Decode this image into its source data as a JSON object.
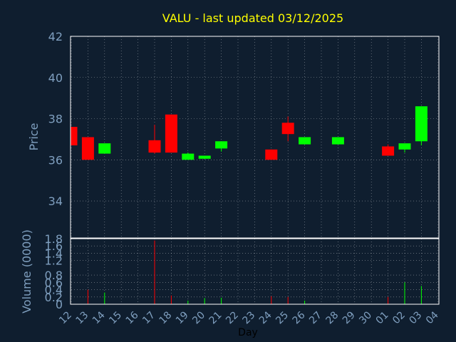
{
  "chart_data": [
    {
      "type": "candlestick",
      "title": "VALU - last updated 03/12/2025",
      "ylabel": "Price",
      "ylim": [
        32.2,
        42
      ],
      "yticks": [
        34,
        36,
        38,
        40,
        42
      ],
      "grid": true,
      "colors": {
        "up": "#00ff00",
        "down": "#ff0000",
        "background": "#0f1e2f",
        "text": "#7f9fbf",
        "title": "#ffff00",
        "grid": "#ffffff"
      },
      "x": [
        "12",
        "13",
        "14",
        "15",
        "16",
        "17",
        "18",
        "19",
        "20",
        "21",
        "22",
        "23",
        "24",
        "25",
        "26",
        "27",
        "28",
        "29",
        "30",
        "01",
        "02",
        "03",
        "04"
      ],
      "candles": [
        {
          "day": "12",
          "open": 37.6,
          "close": 36.7,
          "high": 37.6,
          "low": 36.7
        },
        {
          "day": "13",
          "open": 37.1,
          "close": 36.0,
          "high": 37.1,
          "low": 36.0
        },
        {
          "day": "14",
          "open": 36.3,
          "close": 36.8,
          "high": 36.8,
          "low": 36.3
        },
        {
          "day": "17",
          "open": 36.95,
          "close": 36.35,
          "high": 37.7,
          "low": 36.3
        },
        {
          "day": "18",
          "open": 38.2,
          "close": 36.35,
          "high": 38.2,
          "low": 36.35
        },
        {
          "day": "19",
          "open": 36.0,
          "close": 36.3,
          "high": 36.35,
          "low": 36.0
        },
        {
          "day": "20",
          "open": 36.05,
          "close": 36.2,
          "high": 36.2,
          "low": 36.05
        },
        {
          "day": "21",
          "open": 36.55,
          "close": 36.9,
          "high": 36.9,
          "low": 36.4
        },
        {
          "day": "24",
          "open": 36.5,
          "close": 36.0,
          "high": 36.5,
          "low": 36.0
        },
        {
          "day": "25",
          "open": 37.8,
          "close": 37.25,
          "high": 38.1,
          "low": 36.9
        },
        {
          "day": "26",
          "open": 36.75,
          "close": 37.1,
          "high": 37.1,
          "low": 36.75
        },
        {
          "day": "28",
          "open": 36.75,
          "close": 37.1,
          "high": 37.1,
          "low": 36.75
        },
        {
          "day": "01",
          "open": 36.65,
          "close": 36.2,
          "high": 36.75,
          "low": 36.2
        },
        {
          "day": "02",
          "open": 36.5,
          "close": 36.8,
          "high": 36.8,
          "low": 36.35
        },
        {
          "day": "03",
          "open": 36.9,
          "close": 38.6,
          "high": 38.6,
          "low": 36.7
        }
      ]
    },
    {
      "type": "bar",
      "ylabel": "Volume (0000)",
      "xlabel": "Day",
      "ylim": [
        0,
        1.8
      ],
      "yticks": [
        0,
        0.2,
        0.4,
        0.6,
        0.8,
        1.2,
        1.4,
        1.6,
        1.8
      ],
      "grid": true,
      "x": [
        "12",
        "13",
        "14",
        "15",
        "16",
        "17",
        "18",
        "19",
        "20",
        "21",
        "22",
        "23",
        "24",
        "25",
        "26",
        "27",
        "28",
        "29",
        "30",
        "01",
        "02",
        "03",
        "04"
      ],
      "bars": [
        {
          "day": "13",
          "value": 0.4,
          "direction": "down"
        },
        {
          "day": "14",
          "value": 0.32,
          "direction": "up"
        },
        {
          "day": "17",
          "value": 1.75,
          "direction": "down"
        },
        {
          "day": "18",
          "value": 0.24,
          "direction": "down"
        },
        {
          "day": "19",
          "value": 0.1,
          "direction": "up"
        },
        {
          "day": "20",
          "value": 0.17,
          "direction": "up"
        },
        {
          "day": "21",
          "value": 0.18,
          "direction": "up"
        },
        {
          "day": "24",
          "value": 0.22,
          "direction": "down"
        },
        {
          "day": "25",
          "value": 0.2,
          "direction": "down"
        },
        {
          "day": "26",
          "value": 0.1,
          "direction": "up"
        },
        {
          "day": "01",
          "value": 0.2,
          "direction": "down"
        },
        {
          "day": "02",
          "value": 0.6,
          "direction": "up"
        },
        {
          "day": "03",
          "value": 0.5,
          "direction": "up"
        }
      ]
    }
  ]
}
